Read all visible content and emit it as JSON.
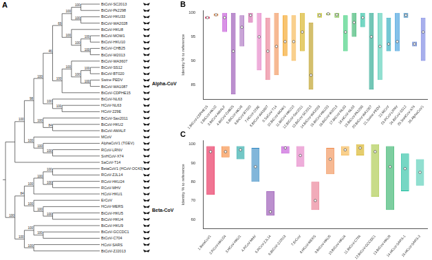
{
  "tree": {
    "title": "A",
    "clades": [
      {
        "label": "Alpha-CoV",
        "from": "BtCoV-SC2013",
        "to": "SaCoV-T14"
      },
      {
        "label": "Beta-CoV",
        "from": "BetaCoV1 (HCoV-OC43)",
        "to": "BtCoV-ZJ2013"
      }
    ],
    "root": {
      "children": [
        {
          "children": [
            {
              "support": 100,
              "children": [
                {
                  "support": 98,
                  "children": [
                    {
                      "support": 100,
                      "children": [
                        {
                          "support": 46,
                          "children": [
                            {
                              "support": 69,
                              "children": [
                                {
                                  "support": 100,
                                  "children": [
                                    {
                                      "support": 100,
                                      "children": [
                                        {
                                          "label": "BtCoV-SC2013"
                                        },
                                        {
                                          "label": "BtCoV-Pk2298"
                                        }
                                      ]
                                    },
                                    {
                                      "support": 100,
                                      "children": [
                                        {
                                          "label": "BtCoV-HKU33"
                                        },
                                        {
                                          "label": "BtCoV-WA2028"
                                        }
                                      ]
                                    }
                                  ]
                                },
                                {
                                  "support": 100,
                                  "children": [
                                    {
                                      "label": "BtCoV-HKU8"
                                    },
                                    {
                                      "support": 100,
                                      "children": [
                                        {
                                          "support": 100,
                                          "children": [
                                            {
                                              "label": "BtCoV-MOW1"
                                            },
                                            {
                                              "label": "BtCoV-HKU10"
                                            }
                                          ]
                                        },
                                        {
                                          "support": 100,
                                          "children": [
                                            {
                                              "label": "BtCoV-CHB25"
                                            },
                                            {
                                              "label": "BtCoV-W2013"
                                            }
                                          ]
                                        }
                                      ]
                                    }
                                  ]
                                }
                              ]
                            },
                            {
                              "support": 100,
                              "children": [
                                {
                                  "support": 100,
                                  "children": [
                                    {
                                      "label": "BtCoV-WA3607"
                                    },
                                    {
                                      "support": 100,
                                      "children": [
                                        {
                                          "support": 100,
                                          "children": [
                                            {
                                              "label": "BtCoV-SS12"
                                            },
                                            {
                                              "label": "BtCoV-BT020"
                                            }
                                          ]
                                        },
                                        {
                                          "support": 100,
                                          "children": [
                                            {
                                              "label": "Swine PEDV"
                                            },
                                            {
                                              "label": "BtCoV-WA1087"
                                            }
                                          ]
                                        }
                                      ]
                                    }
                                  ]
                                },
                                {
                                  "label": "BtCoV-CDPHE15"
                                }
                              ]
                            }
                          ]
                        },
                        {
                          "support": 100,
                          "children": [
                            {
                              "label": "BtCoV-NL63"
                            },
                            {
                              "support": 100,
                              "children": [
                                {
                                  "label": "HCoV-NL63"
                                },
                                {
                                  "label": "HCoV-229E"
                                }
                              ]
                            }
                          ]
                        }
                      ]
                    },
                    {
                      "support": 100,
                      "children": [
                        {
                          "label": "BtCoV-Sax2011"
                        },
                        {
                          "support": 84,
                          "children": [
                            {
                              "label": "BtCoV-HKU2"
                            },
                            {
                              "label": "BtCoV-AMALF"
                            }
                          ]
                        }
                      ]
                    }
                  ]
                },
                {
                  "support": 100,
                  "children": [
                    {
                      "label": "MCoV"
                    },
                    {
                      "support": 100,
                      "children": [
                        {
                          "label": "AlphaCoV1 (TGEV)"
                        },
                        {
                          "support": 100,
                          "children": [
                            {
                              "label": "RCoV-LRNV"
                            },
                            {
                              "label": "SnHCoV-X74"
                            }
                          ]
                        }
                      ]
                    }
                  ]
                }
              ]
            },
            {
              "label": "SaCoV-T14"
            }
          ]
        },
        {
          "support": 100,
          "children": [
            {
              "support": 84,
              "children": [
                {
                  "support": 100,
                  "children": [
                    {
                      "support": 100,
                      "children": [
                        {
                          "support": 100,
                          "children": [
                            {
                              "label": "BetaCoV1 (HCoV-OC43)"
                            },
                            {
                              "label": "RCoV-ZJL14"
                            }
                          ]
                        },
                        {
                          "support": 100,
                          "children": [
                            {
                              "label": "RCoV-HKU24"
                            },
                            {
                              "label": "RCoV-MHV"
                            }
                          ]
                        }
                      ]
                    },
                    {
                      "label": "HCoV-HKU1"
                    }
                  ]
                },
                {
                  "support": 100,
                  "children": [
                    {
                      "label": "ErCoV"
                    },
                    {
                      "support": 100,
                      "children": [
                        {
                          "label": "HCoV-MERS"
                        },
                        {
                          "support": 100,
                          "children": [
                            {
                              "label": "BtCoV-HKU5"
                            },
                            {
                              "label": "BtCoV-HKU4"
                            }
                          ]
                        }
                      ]
                    }
                  ]
                }
              ]
            },
            {
              "support": 100,
              "children": [
                {
                  "support": 100,
                  "children": [
                    {
                      "label": "BtCoV-HKU9"
                    },
                    {
                      "support": 100,
                      "children": [
                        {
                          "label": "BtCoV-GCCDC1"
                        },
                        {
                          "label": "BtCoV-C704"
                        }
                      ]
                    }
                  ]
                },
                {
                  "support": 100,
                  "children": [
                    {
                      "label": "HCoV-SARS"
                    },
                    {
                      "label": "BtCoV-ZJ2013"
                    }
                  ]
                }
              ]
            }
          ]
        }
      ]
    }
  },
  "chart_data": [
    {
      "type": "violin",
      "title": "B",
      "y_label": "Identity % to reference",
      "categories": [
        "1.BtCoV-CDPHE15",
        "2.BtCoV-HKU2",
        "3.BtCoV-AMALF",
        "4.BtCoV-CHB25",
        "5.BtCoV-HKU8",
        "6.BtCoV-BT020",
        "7.HCoV-229E",
        "8.BtCoV-WA3607",
        "9.SaCoV-T14",
        "10.BtCoV-MOW1",
        "11.BtCoV-HKU10",
        "12.BtCoV-Sax2011",
        "13.BtCoV-SC2013",
        "14.BtCoV-WA2028",
        "15.BtCoV-HKU33",
        "16.BtCoV-W2013",
        "17.BtCoV-NL63",
        "18.HCoV-NL63",
        "19.BtCoV-Pk2298",
        "20.BtCoV-WA1087",
        "21.Swine PEDV",
        "22.MCoV",
        "23.RCoV-LRNV",
        "24.BtCoV-SS12",
        "25.SnHCoV-X74",
        "26.AlphaCoV1"
      ],
      "values": [
        99,
        99.6,
        99,
        92,
        97,
        99.5,
        95,
        92,
        93,
        94,
        94,
        96,
        87,
        99.5,
        99.8,
        99.6,
        96,
        98,
        99,
        95,
        93,
        93.5,
        94,
        99.5,
        93.5,
        96
      ],
      "ranges": [
        [
          98.8,
          99.2
        ],
        [
          99.3,
          99.8
        ],
        [
          96,
          100
        ],
        [
          83,
          100
        ],
        [
          93,
          99.5
        ],
        [
          98,
          100
        ],
        [
          88,
          100
        ],
        [
          86,
          99
        ],
        [
          87,
          100
        ],
        [
          91,
          99.5
        ],
        [
          90,
          99.5
        ],
        [
          92,
          100
        ],
        [
          84,
          98
        ],
        [
          99,
          100
        ],
        [
          99.5,
          100
        ],
        [
          99,
          100
        ],
        [
          92,
          99.5
        ],
        [
          95,
          100
        ],
        [
          97,
          100
        ],
        [
          84,
          100
        ],
        [
          86,
          100
        ],
        [
          92,
          99
        ],
        [
          92,
          100
        ],
        [
          99,
          100
        ],
        [
          93,
          94
        ],
        [
          90,
          99
        ]
      ],
      "colors": [
        "#e6194b",
        "#f58231",
        "#c04bd6",
        "#8e44ad",
        "#a569bd",
        "#d35ea8",
        "#e377c2",
        "#e8738a",
        "#f08a4b",
        "#f39c12",
        "#f5b041",
        "#d4ac0d",
        "#b7950b",
        "#c9c92a",
        "#a3c43b",
        "#7dbf47",
        "#2ecc71",
        "#27ae60",
        "#1abc9c",
        "#16a085",
        "#48c9b0",
        "#17a2b8",
        "#3498db",
        "#2e86c1",
        "#5b7fd6",
        "#6c7ae0"
      ],
      "ylim": [
        82,
        100.5
      ],
      "yticks": [
        85,
        90,
        95,
        100
      ],
      "grid": false
    },
    {
      "type": "violin",
      "title": "C",
      "y_label": "Identity % to reference",
      "categories": [
        "1.BetaCoV1",
        "2.RCoV-HKU24",
        "3.HCoV-HKU1",
        "4.RCoV-MHV",
        "5.RCoV-ZJL14",
        "6.BtCoV-ZJ2013",
        "7.ErCoV",
        "8.HCoV-MERS",
        "9.BtCoV-HKU5",
        "10.BtCoV-HKU4",
        "11.BtCoV-C704",
        "12.BtCoV-GCCDC1",
        "13.BtCoV-HKU9",
        "14.HCoV-SARS-1",
        "15.HCoV-SARS-2"
      ],
      "values": [
        96,
        96,
        97,
        88,
        64,
        98,
        94,
        70,
        92,
        97,
        98,
        96,
        88,
        87,
        85
      ],
      "ranges": [
        [
          73,
          99
        ],
        [
          93,
          99
        ],
        [
          92,
          99
        ],
        [
          80,
          98
        ],
        [
          62,
          75
        ],
        [
          95,
          99
        ],
        [
          88,
          99
        ],
        [
          65,
          80
        ],
        [
          84,
          98
        ],
        [
          94,
          99
        ],
        [
          94,
          100
        ],
        [
          72,
          100
        ],
        [
          65,
          99
        ],
        [
          75,
          95
        ],
        [
          78,
          92
        ]
      ],
      "colors": [
        "#e6194b",
        "#f58231",
        "#16a2a0",
        "#2e86c1",
        "#8e44ad",
        "#c04bd6",
        "#e377c2",
        "#e8738a",
        "#f08a4b",
        "#f5b041",
        "#d4ac0d",
        "#a3c43b",
        "#27ae60",
        "#1abc9c",
        "#48c9b0"
      ],
      "ylim": [
        55,
        102
      ],
      "yticks": [
        60,
        70,
        80,
        90,
        100
      ],
      "grid": false
    }
  ]
}
